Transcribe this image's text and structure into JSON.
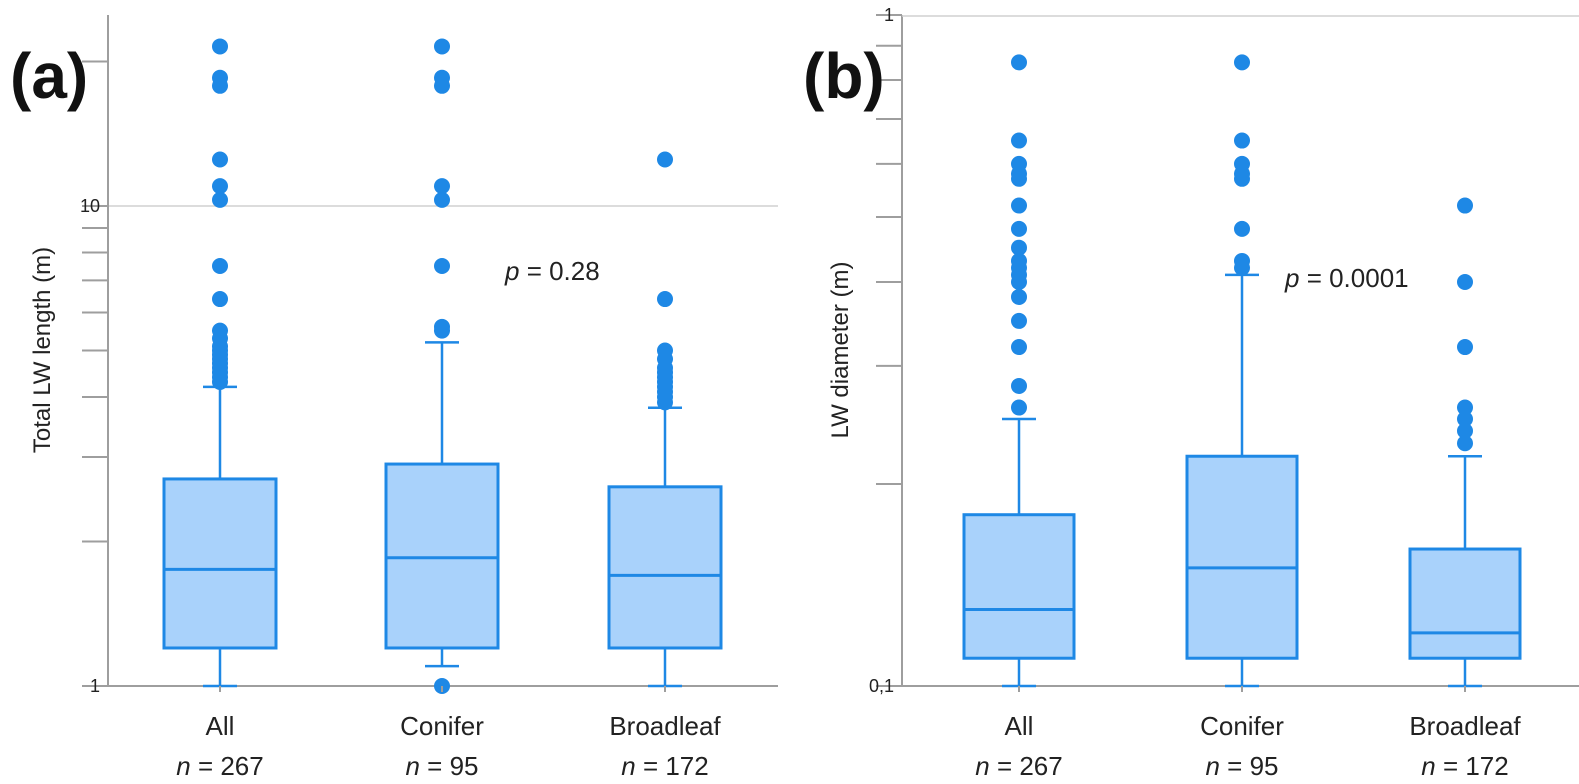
{
  "chart_data": [
    {
      "type": "boxplot",
      "panel_label": "(a)",
      "ylabel": "Total LW length (m)",
      "yscale": "log",
      "ylim": [
        1,
        25
      ],
      "yticks_labeled": [
        {
          "value": 1,
          "label": "1"
        },
        {
          "value": 10,
          "label": "10"
        }
      ],
      "yticks_minor": [
        2,
        3,
        4,
        5,
        6,
        7,
        8,
        9,
        20
      ],
      "reference_lines": [
        10
      ],
      "annotation": {
        "prefix": "p",
        "text": " = 0.28"
      },
      "categories": [
        {
          "label": "All",
          "n_prefix": "n",
          "n_text": " = 267",
          "min": 1.0,
          "q1": 1.2,
          "median": 1.75,
          "q3": 2.7,
          "max": 4.2,
          "outliers": [
            4.3,
            4.4,
            4.5,
            4.6,
            4.7,
            4.8,
            4.9,
            5.0,
            5.1,
            5.3,
            5.5,
            6.4,
            7.5,
            10.3,
            11.0,
            12.5,
            17.8,
            18.5,
            21.5
          ]
        },
        {
          "label": "Conifer",
          "n_prefix": "n",
          "n_text": " = 95",
          "min": 1.1,
          "q1": 1.2,
          "median": 1.85,
          "q3": 2.9,
          "max": 5.2,
          "outliers": [
            1.0,
            5.5,
            5.6,
            7.5,
            10.3,
            11.0,
            17.8,
            18.5,
            21.5
          ]
        },
        {
          "label": "Broadleaf",
          "n_prefix": "n",
          "n_text": " = 172",
          "min": 1.0,
          "q1": 1.2,
          "median": 1.7,
          "q3": 2.6,
          "max": 3.8,
          "outliers": [
            3.9,
            4.0,
            4.1,
            4.2,
            4.3,
            4.4,
            4.5,
            4.6,
            4.8,
            5.0,
            6.4,
            12.5
          ]
        }
      ]
    },
    {
      "type": "boxplot",
      "panel_label": "(b)",
      "ylabel": "LW diameter (m)",
      "yscale": "log",
      "ylim": [
        0.1,
        1
      ],
      "yticks_labeled": [
        {
          "value": 0.1,
          "label": "0,1"
        },
        {
          "value": 1,
          "label": "1"
        }
      ],
      "yticks_minor": [
        0.2,
        0.3,
        0.4,
        0.5,
        0.6,
        0.7,
        0.8,
        0.9
      ],
      "reference_lines": [],
      "annotation": {
        "prefix": "p",
        "text": " = 0.0001"
      },
      "categories": [
        {
          "label": "All",
          "n_prefix": "n",
          "n_text": " = 267",
          "min": 0.1,
          "q1": 0.11,
          "median": 0.13,
          "q3": 0.18,
          "max": 0.25,
          "outliers": [
            0.26,
            0.28,
            0.32,
            0.35,
            0.38,
            0.4,
            0.41,
            0.42,
            0.43,
            0.45,
            0.48,
            0.52,
            0.57,
            0.58,
            0.6,
            0.65,
            0.85
          ]
        },
        {
          "label": "Conifer",
          "n_prefix": "n",
          "n_text": " = 95",
          "min": 0.1,
          "q1": 0.11,
          "median": 0.15,
          "q3": 0.22,
          "max": 0.41,
          "outliers": [
            0.42,
            0.43,
            0.48,
            0.57,
            0.58,
            0.6,
            0.65,
            0.85
          ]
        },
        {
          "label": "Broadleaf",
          "n_prefix": "n",
          "n_text": " = 172",
          "min": 0.1,
          "q1": 0.11,
          "median": 0.12,
          "q3": 0.16,
          "max": 0.22,
          "outliers": [
            0.23,
            0.24,
            0.25,
            0.26,
            0.32,
            0.4,
            0.52
          ]
        }
      ]
    }
  ]
}
